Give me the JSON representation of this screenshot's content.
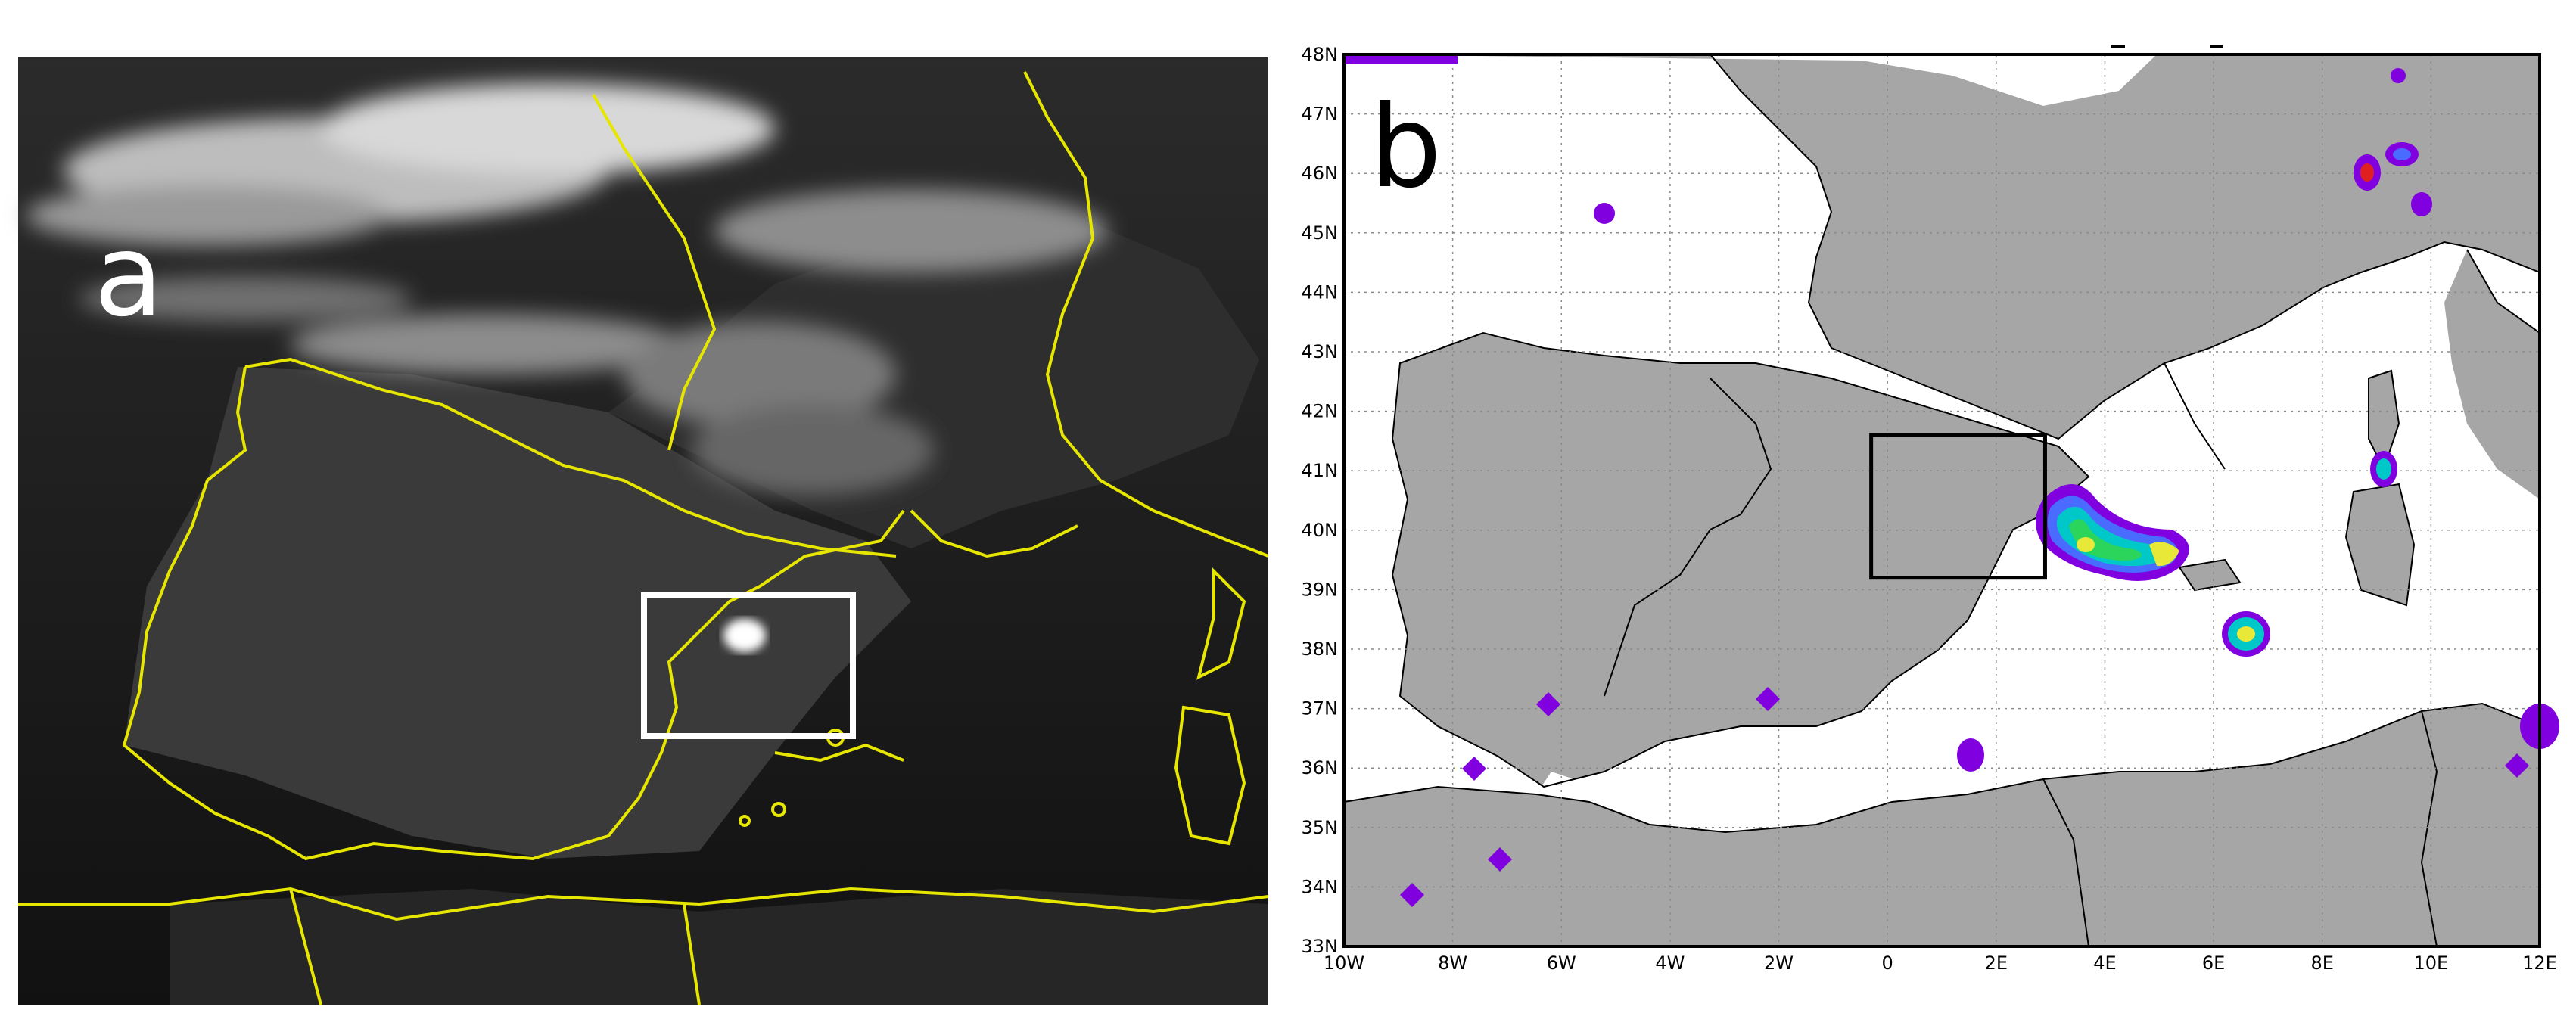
{
  "panel_a": {
    "label": "a",
    "type": "satellite-infrared-image",
    "colors": {
      "coastline": "#e6e600",
      "highlight_box": "#ffffff",
      "background": "#151515"
    }
  },
  "panel_b": {
    "label": "b",
    "type": "precipitation-map",
    "colors": {
      "land": "#a6a6a6",
      "sea": "#ffffff",
      "box": "#000000",
      "contour_levels": [
        "#8000e0",
        "#4a6bff",
        "#00c8c8",
        "#2bd45a",
        "#e8e838",
        "#f08020",
        "#e02020"
      ]
    }
  },
  "map_axes": {
    "lat_labels": [
      "48N",
      "47N",
      "46N",
      "45N",
      "44N",
      "43N",
      "42N",
      "41N",
      "40N",
      "39N",
      "38N",
      "37N",
      "36N",
      "35N",
      "34N",
      "33N"
    ],
    "lon_labels": [
      "10W",
      "8W",
      "6W",
      "4W",
      "2W",
      "0",
      "2E",
      "4E",
      "6E",
      "8E",
      "10E",
      "12E"
    ],
    "lat_range": [
      33,
      48
    ],
    "lon_range": [
      -10,
      12
    ],
    "grid": true
  },
  "highlight_box": {
    "lon_range": [
      -0.3,
      2.9
    ],
    "lat_range": [
      39.2,
      41.6
    ]
  }
}
